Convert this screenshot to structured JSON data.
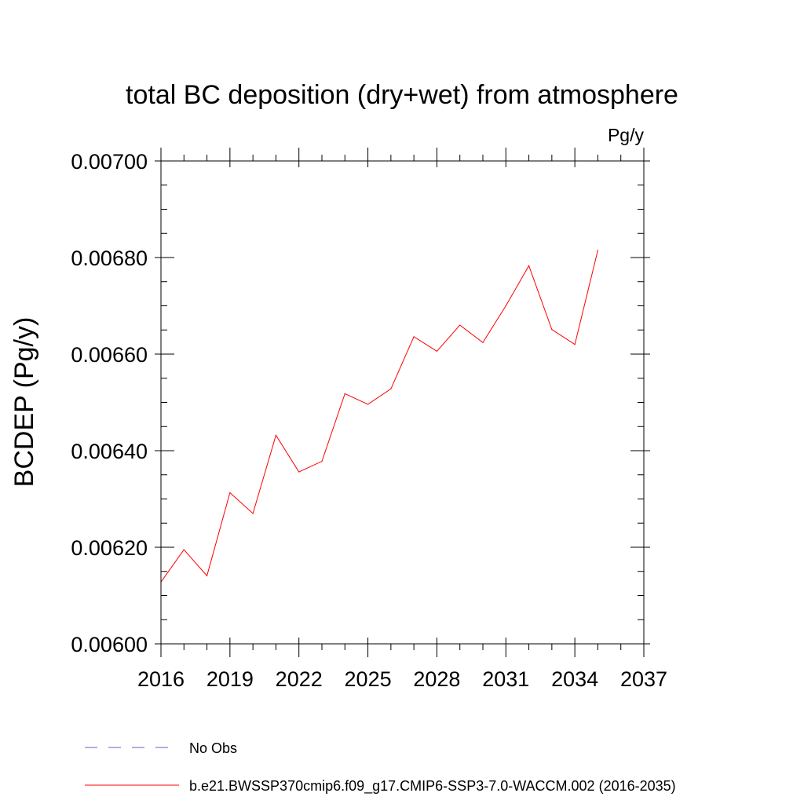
{
  "chart_data": {
    "type": "line",
    "title": "total BC deposition (dry+wet) from atmosphere",
    "units_label": "Pg/y",
    "ylabel": "BCDEP  (Pg/y)",
    "xlabel": "",
    "xlim": [
      2016,
      2037
    ],
    "ylim": [
      0.006,
      0.007
    ],
    "x_ticks": [
      2016,
      2019,
      2022,
      2025,
      2028,
      2031,
      2034,
      2037
    ],
    "x_minor_step": 1,
    "y_ticks": [
      0.006,
      0.0062,
      0.0064,
      0.0066,
      0.0068,
      0.007
    ],
    "y_tick_labels": [
      "0.00600",
      "0.00620",
      "0.00640",
      "0.00660",
      "0.00680",
      "0.00700"
    ],
    "y_minor_step": 5e-05,
    "grid": false,
    "legend_position": "bottom",
    "series": [
      {
        "name": "No Obs",
        "color": "#6a5acd",
        "dash": "dashed",
        "x": [],
        "values": []
      },
      {
        "name": "b.e21.BWSSP370cmip6.f09_g17.CMIP6-SSP3-7.0-WACCM.002 (2016-2035)",
        "color": "#ff0000",
        "dash": "solid",
        "x": [
          2016,
          2017,
          2018,
          2019,
          2020,
          2021,
          2022,
          2023,
          2024,
          2025,
          2026,
          2027,
          2028,
          2029,
          2030,
          2031,
          2032,
          2033,
          2034,
          2035
        ],
        "values": [
          0.006128,
          0.006195,
          0.006141,
          0.006313,
          0.00627,
          0.006432,
          0.006356,
          0.006378,
          0.006518,
          0.006496,
          0.006528,
          0.006636,
          0.006606,
          0.00666,
          0.006624,
          0.0067,
          0.006783,
          0.006651,
          0.00662,
          0.006815
        ]
      }
    ]
  }
}
